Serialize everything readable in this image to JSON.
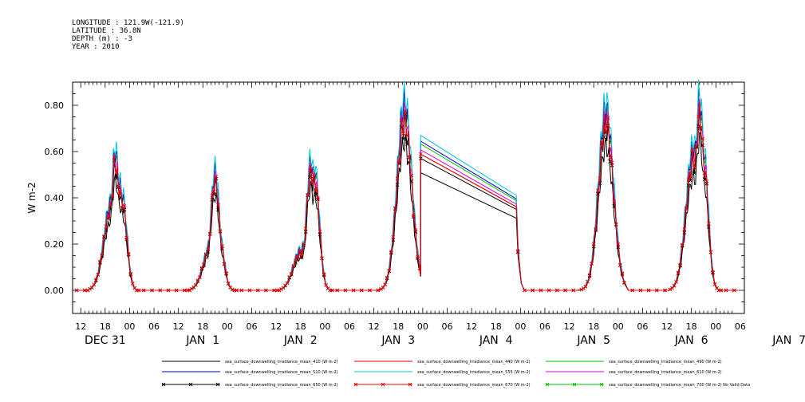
{
  "meta": [
    "LONGITUDE : 121.9W(-121.9)",
    "LATITUDE : 36.8N",
    "DEPTH (m) : -3",
    "YEAR : 2010"
  ],
  "chart_data": {
    "type": "line",
    "ylabel": "W m-2",
    "ylim": [
      -0.1,
      0.9
    ],
    "yticks": [
      0.0,
      0.2,
      0.4,
      0.6,
      0.8
    ],
    "ytick_labels": [
      "0.00",
      "0.20",
      "0.40",
      "0.60",
      "0.80"
    ],
    "xlim_hours": [
      -14,
      151
    ],
    "hour_ticks": [
      "12",
      "18",
      "00",
      "06",
      "12",
      "18",
      "00",
      "06",
      "12",
      "18",
      "00",
      "06",
      "12",
      "18",
      "00",
      "06",
      "12",
      "18",
      "00",
      "06",
      "12",
      "18",
      "00",
      "06",
      "12",
      "18",
      "00",
      "06"
    ],
    "day_labels": [
      "DEC 31",
      "JAN  1",
      "JAN  2",
      "JAN  3",
      "JAN  4",
      "JAN  5",
      "JAN  6",
      "JAN  7"
    ],
    "grid": false,
    "legend_position": "bottom",
    "days": [
      {
        "label": "DEC 31",
        "peaks": [
          0.37,
          0.58,
          0.46,
          0.4
        ],
        "peak_hours": [
          -4.5,
          -3.5,
          -2.6,
          -1.8
        ]
      },
      {
        "label": "JAN  1",
        "peaks": [
          0.2,
          0.5,
          0.24
        ],
        "peak_hours": [
          20.0,
          21.0,
          22.0
        ]
      },
      {
        "label": "JAN  2",
        "peaks": [
          0.17,
          0.2,
          0.54,
          0.5
        ],
        "peak_hours": [
          42.0,
          43.0,
          44.5,
          45.5
        ]
      },
      {
        "label": "JAN  3",
        "peaks": [
          0.78
        ],
        "peak_hours": [
          67.5
        ]
      },
      {
        "label": "JAN  4 (gap)",
        "gap_start": 0.62,
        "gap_end": 0.38
      },
      {
        "label": "JAN  5",
        "peaks": [
          0.76
        ],
        "peak_hours": [
          117.0
        ]
      },
      {
        "label": "JAN  6",
        "peaks": [
          0.6,
          0.8,
          0.58
        ],
        "peak_hours": [
          138.5,
          140.0,
          141.0
        ]
      }
    ],
    "series": [
      {
        "name": "sea_surface_downwelling_irradiance_mean_410 (W m-2)",
        "color": "#000000",
        "scale": 0.82,
        "marker": "none"
      },
      {
        "name": "sea_surface_downwelling_irradiance_mean_440 (W m-2)",
        "color": "#d40000",
        "scale": 0.95,
        "marker": "none"
      },
      {
        "name": "sea_surface_downwelling_irradiance_mean_490 (W m-2)",
        "color": "#00c000",
        "scale": 1.02,
        "marker": "none"
      },
      {
        "name": "sea_surface_downwelling_irradiance_mean_510 (W m-2)",
        "color": "#0000cc",
        "scale": 1.04,
        "marker": "none"
      },
      {
        "name": "sea_surface_downwelling_irradiance_mean_555 (W m-2)",
        "color": "#00c8d8",
        "scale": 1.08,
        "marker": "none"
      },
      {
        "name": "sea_surface_downwelling_irradiance_mean_610 (W m-2)",
        "color": "#e000e0",
        "scale": 0.98,
        "marker": "none"
      },
      {
        "name": "sea_surface_downwelling_irradiance_mean_650 (W m-2)",
        "color": "#000000",
        "scale": 0.92,
        "marker": "x"
      },
      {
        "name": "sea_surface_downwelling_irradiance_mean_670 (W m-2)",
        "color": "#ee0000",
        "scale": 0.95,
        "marker": "x"
      },
      {
        "name": "sea_surface_downwelling_irradiance_mean_700 (W m-2) No Valid Data",
        "color": "#00c000",
        "scale": 0,
        "marker": "x"
      }
    ]
  }
}
